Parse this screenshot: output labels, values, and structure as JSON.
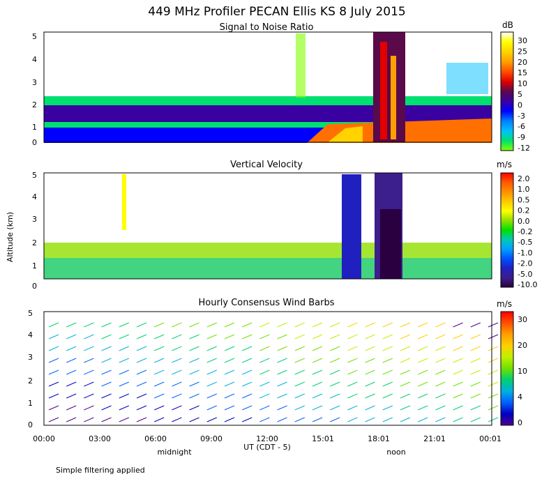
{
  "figure": {
    "title": "449 MHz Profiler PECAN Ellis KS  8 July 2015",
    "ylabel": "Altitude (km)",
    "xlabel": "UT  (CDT - 5)",
    "x_ticks": [
      "00:00",
      "03:00",
      "06:00",
      "09:00",
      "12:00",
      "15:01",
      "18:01",
      "21:01",
      "00:01"
    ],
    "y_ticks": [
      "0",
      "1",
      "2",
      "3",
      "4",
      "5"
    ],
    "local_time_labels": [
      "midnight",
      "noon"
    ],
    "footnote": "Simple filtering applied"
  },
  "chart_data": [
    {
      "type": "heatmap",
      "title": "Signal to Noise Ratio",
      "colorbar_unit": "dB",
      "colorbar_ticks": [
        "30",
        "25",
        "20",
        "15",
        "10",
        "5",
        "0",
        "-3",
        "-6",
        "-9",
        "-12"
      ],
      "colorbar_colors": [
        "#ffffff",
        "#ffff00",
        "#ffd200",
        "#ffa000",
        "#ff5000",
        "#e00000",
        "#5a0a4a",
        "#3a00a0",
        "#0000ff",
        "#0080ff",
        "#00c0ff",
        "#00e070",
        "#80ff00"
      ],
      "ylim": [
        0,
        5
      ],
      "grid": false
    },
    {
      "type": "heatmap",
      "title": "Vertical Velocity",
      "colorbar_unit": "m/s",
      "colorbar_ticks": [
        "2.0",
        "1.0",
        "0.5",
        "0.2",
        "0.0",
        "-0.2",
        "-0.5",
        "-1.0",
        "-2.0",
        "-5.0",
        "-10.0"
      ],
      "colorbar_colors": [
        "#ff0000",
        "#ff5a00",
        "#ff9000",
        "#ffc800",
        "#ffff00",
        "#90e000",
        "#00e000",
        "#00c8b4",
        "#00a0ff",
        "#0050ff",
        "#2020c0",
        "#3c1e8c",
        "#2a0040"
      ],
      "ylim": [
        0,
        5
      ],
      "grid": false
    },
    {
      "type": "scatter",
      "title": "Hourly Consensus Wind Barbs",
      "colorbar_unit": "m/s",
      "colorbar_ticks": [
        "30",
        "20",
        "10",
        "4",
        "0"
      ],
      "colorbar_colors": [
        "#ff0000",
        "#ff5000",
        "#ffa000",
        "#ffd000",
        "#c0f000",
        "#70e000",
        "#00d070",
        "#00b0e0",
        "#0060ff",
        "#0000c0",
        "#500090"
      ],
      "ylim": [
        0,
        5
      ],
      "grid": false
    }
  ]
}
